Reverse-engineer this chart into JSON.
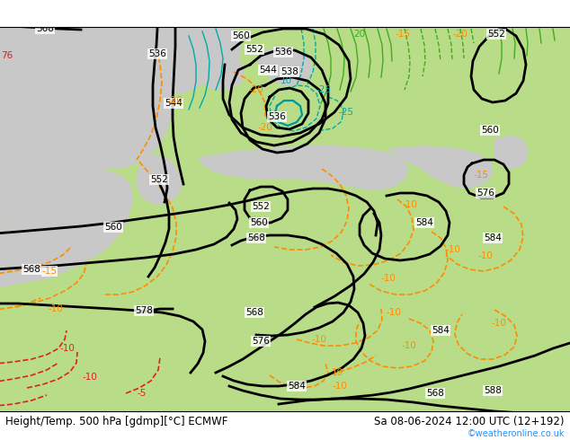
{
  "title_left": "Height/Temp. 500 hPa [gdmp][°C] ECMWF",
  "title_right": "Sa 08-06-2024 12:00 UTC (12+192)",
  "credit": "©weatheronline.co.uk",
  "land_color": "#b8dc88",
  "sea_color": "#c8c8c8",
  "title_fontsize": 8.5,
  "credit_fontsize": 7,
  "credit_color": "#1e90ff",
  "label_fontsize": 7.5
}
